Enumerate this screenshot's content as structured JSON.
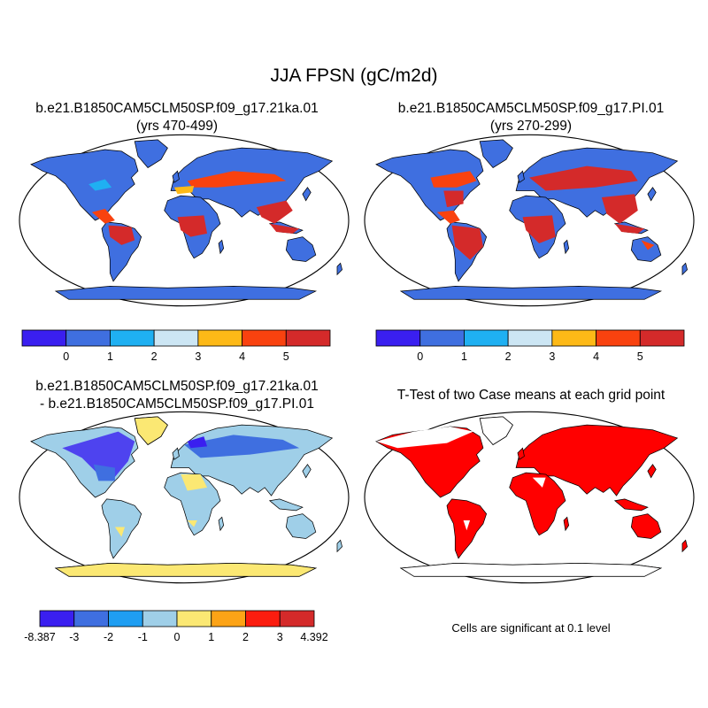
{
  "title": "JJA FPSN (gC/m2d)",
  "panels": {
    "top_left": {
      "title_line1": "b.e21.B1850CAM5CLM50SP.f09_g17.21ka.01",
      "title_line2": "(yrs 470-499)"
    },
    "top_right": {
      "title_line1": "b.e21.B1850CAM5CLM50SP.f09_g17.PI.01",
      "title_line2": "(yrs 270-299)"
    },
    "bottom_left": {
      "title_line1": "b.e21.B1850CAM5CLM50SP.f09_g17.21ka.01",
      "title_line2": "- b.e21.B1850CAM5CLM50SP.f09_g17.PI.01"
    },
    "bottom_right": {
      "title_line1": "T-Test of two Case means at each grid point",
      "note": "Cells are significant at 0.1 level"
    }
  },
  "colorbars": {
    "abs": {
      "colors": [
        "#3a1ff0",
        "#3f6fe0",
        "#1fb0f2",
        "#cce6f4",
        "#fdb917",
        "#f9420f",
        "#d42a2a"
      ],
      "labels": [
        "0",
        "1",
        "2",
        "3",
        "4",
        "5"
      ]
    },
    "diff": {
      "colors": [
        "#3a1ff0",
        "#3f6fe0",
        "#1f9ef2",
        "#9fcfe8",
        "#fbe873",
        "#fca316",
        "#fb1d0f",
        "#d42a2a"
      ],
      "labels": [
        "-8.387",
        "-3",
        "-2",
        "-1",
        "0",
        "1",
        "2",
        "3",
        "4.392"
      ]
    }
  },
  "significance_color": "#ff0000",
  "ocean_color": "#ffffff",
  "projection": "robinson"
}
